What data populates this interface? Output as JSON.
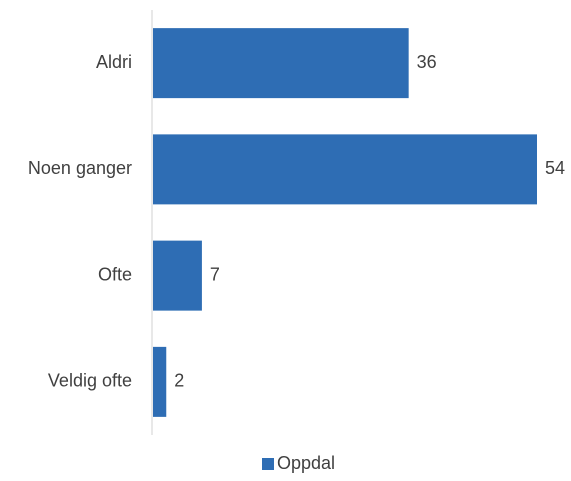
{
  "chart_data": {
    "type": "bar",
    "orientation": "horizontal",
    "title": "",
    "xlabel": "",
    "ylabel": "",
    "categories": [
      "Aldri",
      "Noen ganger",
      "Ofte",
      "Veldig ofte"
    ],
    "series": [
      {
        "name": "Oppdal",
        "values": [
          36,
          54,
          7,
          2
        ],
        "color": "#2e6db4"
      }
    ],
    "xlim": [
      0,
      54
    ],
    "grid": false,
    "data_labels": true,
    "legend": {
      "position": "bottom",
      "entries": [
        "Oppdal"
      ]
    }
  }
}
